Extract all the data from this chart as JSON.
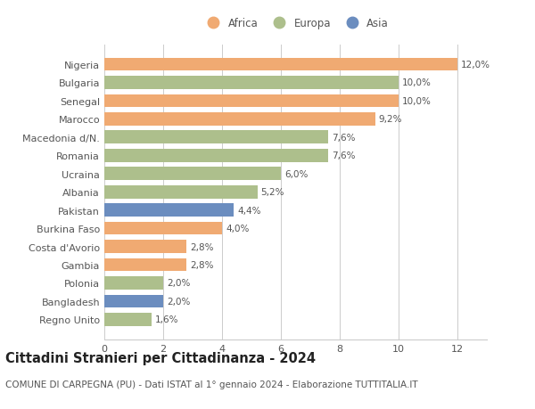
{
  "categories": [
    "Nigeria",
    "Bulgaria",
    "Senegal",
    "Marocco",
    "Macedonia d/N.",
    "Romania",
    "Ucraina",
    "Albania",
    "Pakistan",
    "Burkina Faso",
    "Costa d'Avorio",
    "Gambia",
    "Polonia",
    "Bangladesh",
    "Regno Unito"
  ],
  "values": [
    12.0,
    10.0,
    10.0,
    9.2,
    7.6,
    7.6,
    6.0,
    5.2,
    4.4,
    4.0,
    2.8,
    2.8,
    2.0,
    2.0,
    1.6
  ],
  "labels": [
    "12,0%",
    "10,0%",
    "10,0%",
    "9,2%",
    "7,6%",
    "7,6%",
    "6,0%",
    "5,2%",
    "4,4%",
    "4,0%",
    "2,8%",
    "2,8%",
    "2,0%",
    "2,0%",
    "1,6%"
  ],
  "continent": [
    "Africa",
    "Europa",
    "Africa",
    "Africa",
    "Europa",
    "Europa",
    "Europa",
    "Europa",
    "Asia",
    "Africa",
    "Africa",
    "Africa",
    "Europa",
    "Asia",
    "Europa"
  ],
  "colors": {
    "Africa": "#F0AA72",
    "Europa": "#ADBF8C",
    "Asia": "#6B8DBF"
  },
  "legend_labels": [
    "Africa",
    "Europa",
    "Asia"
  ],
  "legend_colors": [
    "#F0AA72",
    "#ADBF8C",
    "#6B8DBF"
  ],
  "title": "Cittadini Stranieri per Cittadinanza - 2024",
  "subtitle": "COMUNE DI CARPEGNA (PU) - Dati ISTAT al 1° gennaio 2024 - Elaborazione TUTTITALIA.IT",
  "xlim": [
    0,
    13
  ],
  "xticks": [
    0,
    2,
    4,
    6,
    8,
    10,
    12
  ],
  "background_color": "#ffffff",
  "grid_color": "#cccccc",
  "bar_height": 0.72,
  "title_fontsize": 10.5,
  "subtitle_fontsize": 7.5,
  "label_fontsize": 7.5,
  "tick_fontsize": 8,
  "legend_fontsize": 8.5
}
